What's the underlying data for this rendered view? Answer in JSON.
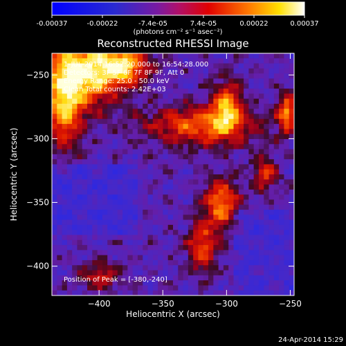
{
  "chart_data": {
    "type": "heatmap",
    "title": "Reconstructed RHESSI Image",
    "xlabel": "Heliocentric X (arcsec)",
    "ylabel": "Heliocentric Y (arcsec)",
    "xlim": [
      -437,
      -247
    ],
    "ylim": [
      -423,
      -233
    ],
    "x_ticks": [
      -400,
      -350,
      -300,
      -250
    ],
    "y_ticks": [
      -250,
      -300,
      -350,
      -400
    ],
    "x_tick_labels": [
      "−400",
      "−350",
      "−300",
      "−250"
    ],
    "y_tick_labels": [
      "−250",
      "−300",
      "−350",
      "−400"
    ],
    "colorbar": {
      "tick_labels": [
        "-0.00037",
        "-0.00022",
        "-7.4e-05",
        "7.4e-05",
        "0.00022",
        "0.00037"
      ],
      "range": [
        -0.00037,
        0.00037
      ],
      "units_label": "(photons cm⁻² s⁻¹ asec⁻²)"
    },
    "annotations": {
      "time_range": "1-JUL-2014 16:52:20.000 to 16:54:28.000",
      "detectors": "Detectors: 3F 5F 6F 7F 8F 9F, Att 0",
      "energy": "Energy Range: 25.0 - 50.0 keV",
      "method": "Clean     Total counts: 2.42E+03",
      "peak": "Position of Peak = [-380,-240]"
    },
    "footer_date": "24-Apr-2014 15:29"
  },
  "colors": {
    "background": "#000000",
    "text": "#ffffff",
    "map_low": "#2020ff",
    "map_mid": "#6020a0",
    "map_high": "#ffffff"
  }
}
